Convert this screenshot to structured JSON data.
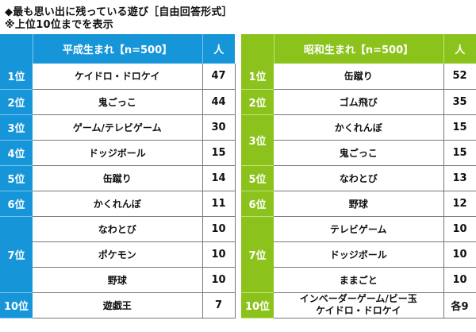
{
  "header": {
    "title": "◆最も思い出に残っている遊び［自由回答形式］",
    "note": "※上位10位までを表示"
  },
  "chart_data": {
    "type": "table",
    "title": "◆最も思い出に残っている遊び［自由回答形式］",
    "note": "※上位10位までを表示",
    "tables": [
      {
        "name": "heisei",
        "header": {
          "rank": "",
          "item": "平成生まれ【n=500】",
          "count": "人"
        },
        "rank_groups": [
          {
            "rank": "1位",
            "rows": 1
          },
          {
            "rank": "2位",
            "rows": 1
          },
          {
            "rank": "3位",
            "rows": 1
          },
          {
            "rank": "4位",
            "rows": 1
          },
          {
            "rank": "5位",
            "rows": 1
          },
          {
            "rank": "6位",
            "rows": 1
          },
          {
            "rank": "7位",
            "rows": 3
          },
          {
            "rank": "10位",
            "rows": 1
          }
        ],
        "rows": [
          {
            "item": "ケイドロ・ドロケイ",
            "count": "47"
          },
          {
            "item": "鬼ごっこ",
            "count": "44"
          },
          {
            "item": "ゲーム/テレビゲーム",
            "count": "30"
          },
          {
            "item": "ドッジボール",
            "count": "15"
          },
          {
            "item": "缶蹴り",
            "count": "14"
          },
          {
            "item": "かくれんぼ",
            "count": "11"
          },
          {
            "item": "なわとび",
            "count": "10"
          },
          {
            "item": "ポケモン",
            "count": "10"
          },
          {
            "item": "野球",
            "count": "10"
          },
          {
            "item": "遊戯王",
            "count": "7"
          }
        ]
      },
      {
        "name": "showa",
        "header": {
          "rank": "",
          "item": "昭和生まれ【n=500】",
          "count": "人"
        },
        "rank_groups": [
          {
            "rank": "1位",
            "rows": 1
          },
          {
            "rank": "2位",
            "rows": 1
          },
          {
            "rank": "3位",
            "rows": 2
          },
          {
            "rank": "5位",
            "rows": 1
          },
          {
            "rank": "6位",
            "rows": 1
          },
          {
            "rank": "7位",
            "rows": 3
          },
          {
            "rank": "10位",
            "rows": 1
          }
        ],
        "rows": [
          {
            "item": "缶蹴り",
            "count": "52"
          },
          {
            "item": "ゴム飛び",
            "count": "35"
          },
          {
            "item": "かくれんぼ",
            "count": "15"
          },
          {
            "item": "鬼ごっこ",
            "count": "15"
          },
          {
            "item": "なわとび",
            "count": "13"
          },
          {
            "item": "野球",
            "count": "12"
          },
          {
            "item": "テレビゲーム",
            "count": "10"
          },
          {
            "item": "ドッジボール",
            "count": "10"
          },
          {
            "item": "ままごと",
            "count": "10"
          },
          {
            "item": "インベーダーゲーム/ビー玉\nケイドロ・ドロケイ",
            "count": "各9"
          }
        ]
      }
    ]
  }
}
